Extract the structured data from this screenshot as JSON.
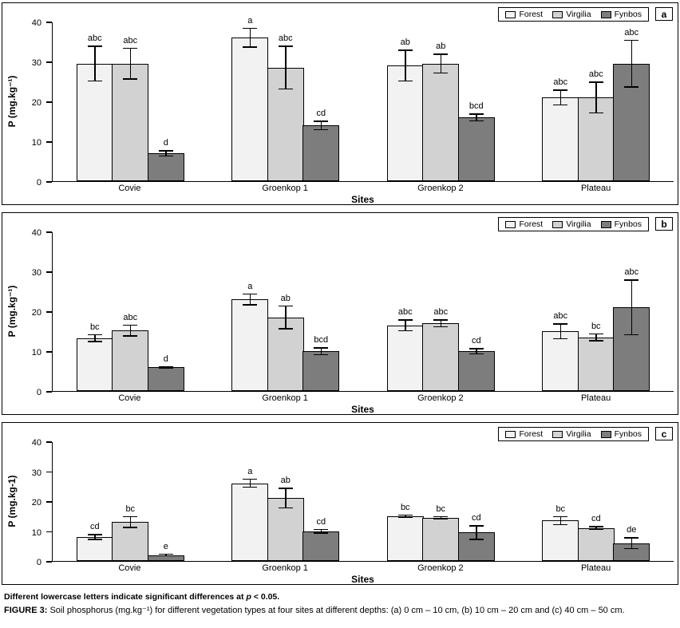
{
  "figure": {
    "footnote": {
      "prefix": "Different lowercase letters indicate significant differences at ",
      "italic": "p",
      "suffix": " < 0.05."
    },
    "caption": {
      "label": "FIGURE 3:",
      "text": " Soil phosphorus (mg.kg⁻¹) for different vegetation types at four sites at different depths: (a) 0 cm – 10 cm, (b) 10 cm – 20 cm and (c) 40 cm – 50 cm."
    }
  },
  "colors": {
    "forest_fill": "#f2f2f2",
    "virgilia_fill": "#d2d2d2",
    "fynbos_fill": "#7d7d7d",
    "axis": "#000000"
  },
  "chart_data": [
    {
      "type": "bar",
      "panel_label": "a",
      "ylabel": "P (mg.kg⁻¹)",
      "xlabel": "Sites",
      "ylim": [
        0,
        40
      ],
      "yticks": [
        0,
        10,
        20,
        30,
        40
      ],
      "legend_position": "top-right",
      "categories": [
        "Covie",
        "Groenkop 1",
        "Groenkop 2",
        "Plateau"
      ],
      "series": [
        {
          "name": "Forest",
          "fill": "#f2f2f2",
          "values": [
            29.5,
            36,
            29,
            21
          ],
          "errors": [
            4.5,
            2.5,
            4,
            2
          ],
          "sig_letters": [
            "abc",
            "a",
            "ab",
            "abc"
          ]
        },
        {
          "name": "Virgilia",
          "fill": "#d2d2d2",
          "values": [
            29.5,
            28.5,
            29.5,
            21
          ],
          "errors": [
            4,
            5.5,
            2.5,
            4
          ],
          "sig_letters": [
            "abc",
            "abc",
            "ab",
            "abc"
          ]
        },
        {
          "name": "Fynbos",
          "fill": "#7d7d7d",
          "values": [
            7,
            14,
            16,
            29.5
          ],
          "errors": [
            0.8,
            1.2,
            1,
            6
          ],
          "sig_letters": [
            "d",
            "cd",
            "bcd",
            "abc"
          ]
        }
      ]
    },
    {
      "type": "bar",
      "panel_label": "b",
      "ylabel": "P (mg.kg⁻¹)",
      "xlabel": "Sites",
      "ylim": [
        0,
        40
      ],
      "yticks": [
        0,
        10,
        20,
        30,
        40
      ],
      "legend_position": "top-right",
      "categories": [
        "Covie",
        "Groenkop 1",
        "Groenkop 2",
        "Plateau"
      ],
      "series": [
        {
          "name": "Forest",
          "fill": "#f2f2f2",
          "values": [
            13.3,
            23,
            16.5,
            15
          ],
          "errors": [
            1,
            1.5,
            1.5,
            2
          ],
          "sig_letters": [
            "bc",
            "a",
            "abc",
            "abc"
          ]
        },
        {
          "name": "Virgilia",
          "fill": "#d2d2d2",
          "values": [
            15.2,
            18.5,
            17,
            13.5
          ],
          "errors": [
            1.5,
            3,
            1,
            1
          ],
          "sig_letters": [
            "abc",
            "ab",
            "abc",
            "bc"
          ]
        },
        {
          "name": "Fynbos",
          "fill": "#7d7d7d",
          "values": [
            6,
            10,
            10,
            21
          ],
          "errors": [
            0.3,
            1,
            0.8,
            7
          ],
          "sig_letters": [
            "d",
            "bcd",
            "cd",
            "abc"
          ]
        }
      ]
    },
    {
      "type": "bar",
      "panel_label": "c",
      "ylabel": "P (mg.kg-1)",
      "xlabel": "Sites",
      "ylim": [
        0,
        40
      ],
      "yticks": [
        0,
        10,
        20,
        30,
        40
      ],
      "legend_position": "top-right",
      "categories": [
        "Covie",
        "Groenkop 1",
        "Groenkop 2",
        "Plateau"
      ],
      "series": [
        {
          "name": "Forest",
          "fill": "#f2f2f2",
          "values": [
            8,
            26,
            15,
            13.5
          ],
          "errors": [
            1,
            1.5,
            0.5,
            1.5
          ],
          "sig_letters": [
            "cd",
            "a",
            "bc",
            "bc"
          ]
        },
        {
          "name": "Virgilia",
          "fill": "#d2d2d2",
          "values": [
            13,
            21,
            14.5,
            11
          ],
          "errors": [
            2,
            3.5,
            0.5,
            0.7
          ],
          "sig_letters": [
            "bc",
            "ab",
            "bc",
            "cd"
          ]
        },
        {
          "name": "Fynbos",
          "fill": "#7d7d7d",
          "values": [
            2,
            10,
            9.5,
            6
          ],
          "errors": [
            0.5,
            0.8,
            2.5,
            2
          ],
          "sig_letters": [
            "e",
            "cd",
            "cd",
            "de"
          ]
        }
      ]
    }
  ]
}
